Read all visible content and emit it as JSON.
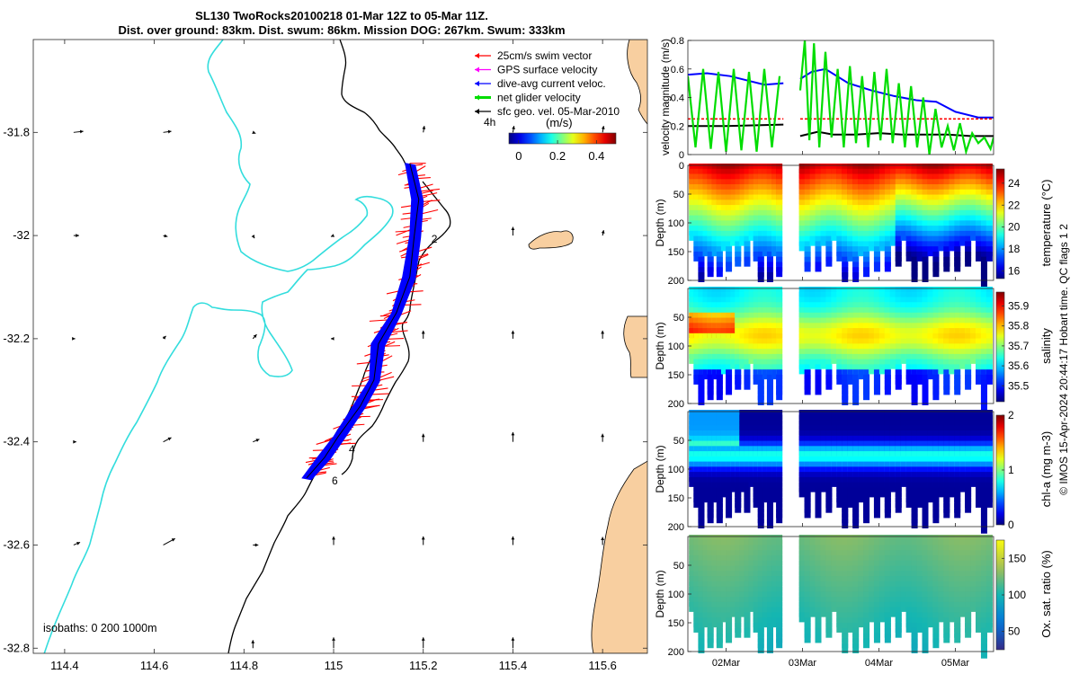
{
  "title_line1": "SL130 TwoRocks20100218 01-Mar 12Z to 05-Mar 11Z.",
  "title_line2": "Dist. over ground: 83km. Dist. swum: 86km. Mission DOG: 267km. Swum: 333km",
  "footer_right": "© IMOS 15-Apr-2024 20:44:17 Hobart time. QC flags 1  2",
  "colors": {
    "land": "#f8cfa0",
    "isobath_0": "#000000",
    "isobath_200": "#000000",
    "isobath_1000": "#33dddd",
    "swim": "#ff0000",
    "gps": "#ff00ff",
    "current": "#0000ff",
    "net": "#00dd00",
    "sfc": "#000000"
  },
  "chart_data": [
    {
      "type": "map",
      "xticks": [
        "114.4",
        "114.6",
        "114.8",
        "115",
        "115.2",
        "115.4",
        "115.6"
      ],
      "yticks": [
        "-31.8",
        "-32",
        "-32.2",
        "-32.4",
        "-32.6",
        "-32.8"
      ],
      "xlim": [
        114.33,
        115.7
      ],
      "ylim": [
        -32.81,
        -31.62
      ],
      "isobaths_label": "isobaths: 0   200  1000m",
      "legend": [
        {
          "label": "25cm/s swim vector",
          "color": "#ff0000"
        },
        {
          "label": "GPS surface velocity",
          "color": "#ff00ff"
        },
        {
          "label": "dive-avg current veloc.",
          "color": "#0000ff"
        },
        {
          "label": "net glider velocity",
          "color": "#00dd00"
        },
        {
          "label": "sfc geo. vel. 05-Mar-2010",
          "color": "#000000"
        }
      ],
      "colorbar": {
        "label": "(m/s)",
        "ticks": [
          "0",
          "0.2",
          "0.4"
        ],
        "range": [
          -0.05,
          0.5
        ],
        "timestep": "4h"
      },
      "track_labels": [
        "2",
        "4",
        "6"
      ],
      "track_points": [
        [
          115.17,
          -31.86
        ],
        [
          115.19,
          -31.93
        ],
        [
          115.18,
          -32.0
        ],
        [
          115.17,
          -32.08
        ],
        [
          115.14,
          -32.15
        ],
        [
          115.1,
          -32.21
        ],
        [
          115.09,
          -32.28
        ],
        [
          115.06,
          -32.33
        ],
        [
          115.01,
          -32.39
        ],
        [
          114.98,
          -32.43
        ],
        [
          114.94,
          -32.47
        ]
      ],
      "geo_vectors": [
        [
          114.42,
          -31.8,
          0.18,
          0.02
        ],
        [
          114.62,
          -31.8,
          0.15,
          0.02
        ],
        [
          114.82,
          -31.8,
          0.05,
          -0.02
        ],
        [
          115.2,
          -31.8,
          0.02,
          0.12
        ],
        [
          115.4,
          -31.8,
          0.02,
          0.12
        ],
        [
          115.6,
          -31.8,
          0.02,
          0.12
        ],
        [
          114.42,
          -32.0,
          0.1,
          0.0
        ],
        [
          114.62,
          -32.0,
          0.08,
          -0.02
        ],
        [
          114.82,
          -32.0,
          0.03,
          -0.05
        ],
        [
          115.0,
          -32.0,
          -0.05,
          -0.02
        ],
        [
          115.4,
          -32.0,
          0.0,
          0.16
        ],
        [
          115.6,
          -32.0,
          0.02,
          0.1
        ],
        [
          114.42,
          -32.2,
          0.03,
          0.0
        ],
        [
          114.62,
          -32.2,
          0.05,
          0.05
        ],
        [
          114.82,
          -32.2,
          0.07,
          0.08
        ],
        [
          115.0,
          -32.2,
          -0.05,
          0.0
        ],
        [
          115.2,
          -32.2,
          0.0,
          0.15
        ],
        [
          115.4,
          -32.2,
          0.0,
          0.15
        ],
        [
          115.6,
          -32.2,
          0.0,
          0.15
        ],
        [
          114.42,
          -32.4,
          0.05,
          0.0
        ],
        [
          114.62,
          -32.4,
          0.15,
          0.08
        ],
        [
          114.82,
          -32.4,
          0.12,
          0.05
        ],
        [
          115.0,
          -32.4,
          -0.08,
          0.05
        ],
        [
          115.2,
          -32.4,
          0.0,
          0.15
        ],
        [
          115.4,
          -32.4,
          0.0,
          0.18
        ],
        [
          115.6,
          -32.4,
          0.0,
          0.15
        ],
        [
          114.42,
          -32.6,
          0.12,
          0.05
        ],
        [
          114.62,
          -32.6,
          0.22,
          0.12
        ],
        [
          114.82,
          -32.6,
          0.1,
          0.0
        ],
        [
          115.0,
          -32.6,
          0.0,
          0.16
        ],
        [
          115.2,
          -32.6,
          0.0,
          0.16
        ],
        [
          115.4,
          -32.6,
          0.0,
          0.16
        ],
        [
          115.6,
          -32.6,
          0.0,
          0.15
        ],
        [
          114.82,
          -32.8,
          0.0,
          0.15
        ],
        [
          115.0,
          -32.8,
          0.0,
          0.2
        ],
        [
          115.2,
          -32.8,
          0.0,
          0.2
        ],
        [
          115.4,
          -32.8,
          0.0,
          0.2
        ]
      ]
    },
    {
      "type": "line",
      "ylabel": "velocity magnitude (m/s)",
      "ylim": [
        0,
        0.8
      ],
      "yticks": [
        "0",
        "0.2",
        "0.4",
        "0.6",
        "0.8"
      ],
      "x_range_days": [
        1.5,
        5.5
      ],
      "gap_days": [
        2.75,
        2.97
      ],
      "series": [
        {
          "name": "dive-avg current veloc.",
          "color": "#0000ff",
          "x": [
            1.5,
            1.75,
            2.05,
            2.5,
            2.75,
            2.97,
            3.12,
            3.3,
            3.6,
            3.9,
            4.2,
            4.5,
            4.75,
            5.0,
            5.3,
            5.5
          ],
          "y": [
            0.56,
            0.57,
            0.55,
            0.49,
            0.5,
            0.53,
            0.58,
            0.6,
            0.5,
            0.45,
            0.41,
            0.38,
            0.37,
            0.3,
            0.26,
            0.26
          ]
        },
        {
          "name": "25cm/s swim vector",
          "color": "#ff0000",
          "x": [
            1.5,
            2.75,
            2.97,
            5.5
          ],
          "y": [
            0.25,
            0.25,
            0.25,
            0.25
          ]
        },
        {
          "name": "sfc geo. vel.",
          "color": "#000000",
          "x": [
            1.5,
            2.0,
            2.75,
            2.97,
            3.2,
            3.4,
            3.7,
            4.0,
            4.3,
            4.6,
            4.9,
            5.2,
            5.5
          ],
          "y": [
            0.2,
            0.2,
            0.21,
            0.13,
            0.16,
            0.14,
            0.14,
            0.15,
            0.14,
            0.14,
            0.14,
            0.13,
            0.13
          ]
        },
        {
          "name": "net glider velocity",
          "color": "#00dd00",
          "x": [
            1.5,
            1.6,
            1.7,
            1.8,
            1.9,
            2.0,
            2.1,
            2.2,
            2.3,
            2.4,
            2.5,
            2.6,
            2.7,
            2.97,
            3.03,
            3.09,
            3.15,
            3.22,
            3.3,
            3.38,
            3.46,
            3.54,
            3.62,
            3.7,
            3.78,
            3.86,
            3.94,
            4.02,
            4.1,
            4.18,
            4.26,
            4.34,
            4.42,
            4.5,
            4.58,
            4.66,
            4.74,
            4.82,
            4.9,
            4.98,
            5.06,
            5.14,
            5.22,
            5.3,
            5.38,
            5.46,
            5.5
          ],
          "y": [
            0.55,
            0.05,
            0.6,
            0.04,
            0.58,
            0.02,
            0.6,
            0.03,
            0.58,
            0.02,
            0.6,
            0.05,
            0.55,
            0.45,
            0.8,
            0.1,
            0.78,
            0.05,
            0.72,
            0.12,
            0.6,
            0.05,
            0.62,
            0.08,
            0.55,
            0.05,
            0.58,
            0.1,
            0.6,
            0.08,
            0.5,
            0.05,
            0.48,
            0.05,
            0.4,
            0.0,
            0.32,
            0.05,
            0.2,
            0.03,
            0.22,
            0.02,
            0.15,
            0.08,
            0.12,
            0.04,
            0.12
          ]
        }
      ]
    },
    {
      "type": "scatter",
      "name": "temperature section",
      "ylabel": "Depth (m)",
      "yticks": [
        "0",
        "50",
        "100",
        "150",
        "200"
      ],
      "colorbar_label": "temperature (°C)",
      "colorbar_ticks": [
        "16",
        "18",
        "20",
        "22",
        "24"
      ],
      "crange": [
        15.3,
        25.3
      ]
    },
    {
      "type": "scatter",
      "name": "salinity section",
      "ylabel": "Depth (m)",
      "yticks": [
        "50",
        "100",
        "150",
        "200"
      ],
      "colorbar_label": "salinity",
      "colorbar_ticks": [
        "35.5",
        "35.6",
        "35.7",
        "35.8",
        "35.9"
      ],
      "crange": [
        35.42,
        35.97
      ]
    },
    {
      "type": "scatter",
      "name": "chl-a section",
      "ylabel": "Depth (m)",
      "yticks": [
        "50",
        "100",
        "150",
        "200"
      ],
      "colorbar_label": "chl-a (mg m-3)",
      "colorbar_ticks": [
        "0",
        "1",
        "2"
      ],
      "crange": [
        0,
        2
      ]
    },
    {
      "type": "scatter",
      "name": "oxygen section",
      "ylabel": "Depth (m)",
      "yticks": [
        "50",
        "100",
        "150",
        "200"
      ],
      "colorbar_label": "Ox. sat. ratio (%)",
      "colorbar_ticks": [
        "50",
        "100",
        "150"
      ],
      "crange": [
        25,
        175
      ]
    },
    {
      "type": "axis",
      "xticks": [
        "02Mar",
        "03Mar",
        "04Mar",
        "05Mar"
      ],
      "xtick_days": [
        2.0,
        3.0,
        4.0,
        5.0
      ]
    }
  ]
}
